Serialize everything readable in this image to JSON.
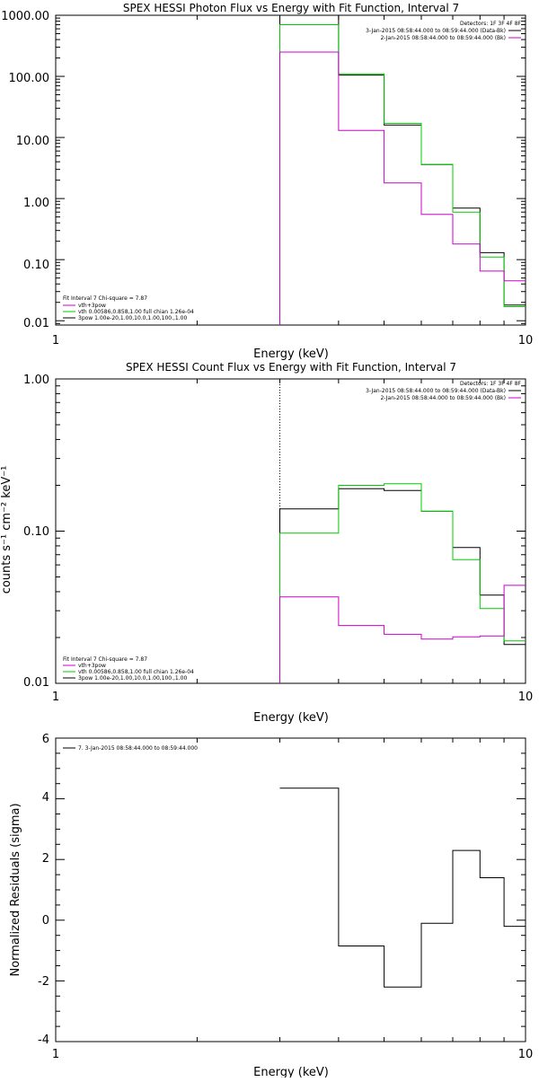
{
  "colors": {
    "black": "#000000",
    "green": "#00cc00",
    "magenta": "#cc00cc"
  },
  "chart_data": [
    {
      "type": "line",
      "step": true,
      "title": "SPEX HESSI Photon Flux vs Energy with Fit Function, Interval 7",
      "xlabel": "Energy (keV)",
      "ylabel": "",
      "xscale": "log",
      "yscale": "log",
      "xlim": [
        1,
        10
      ],
      "ylim": [
        0.0085,
        1000
      ],
      "xtick_labels": [
        "1",
        "10"
      ],
      "ytick_labels": [
        "1000.00",
        "100.00",
        "10.00",
        "1.00",
        "0.10",
        "0.01"
      ],
      "legend_top": {
        "placement": "top-right",
        "lines": [
          {
            "text": "Detectors: 1F 3F 4F 8F",
            "color": ""
          },
          {
            "text": "3-Jan-2015 08:58:44.000 to 08:59:44.000 (Data-Bk)",
            "color": "black"
          },
          {
            "text": "2-Jan-2015 08:58:44.000 to 08:59:44.000 (Bk)",
            "color": "magenta"
          }
        ]
      },
      "legend_bottom": {
        "placement": "bottom-left",
        "lines": [
          {
            "text": "Fit Interval 7   Chi-square = 7.87",
            "color": ""
          },
          {
            "text": "vth+3pow",
            "color": "magenta"
          },
          {
            "text": "vth 0.00586,0.858,1.00  full chian 1.26e-04",
            "color": "green"
          },
          {
            "text": "3pow 1.00e-20,1.00,10.0,1.00,100.,1.00",
            "color": "black"
          }
        ]
      },
      "x_edges": [
        3.0,
        4.0,
        5.0,
        6.0,
        7.0,
        8.0,
        9.0,
        10.0
      ],
      "series": [
        {
          "color": "black",
          "values": [
            1000,
            105,
            16,
            3.6,
            0.7,
            0.13,
            0.018
          ]
        },
        {
          "color": "green",
          "values": [
            700,
            110,
            17,
            3.6,
            0.6,
            0.11,
            0.017
          ]
        },
        {
          "color": "magenta",
          "values": [
            250,
            13,
            1.8,
            0.55,
            0.18,
            0.065,
            0.045
          ]
        }
      ],
      "vline": {
        "x": 3.0,
        "style": "dotted"
      }
    },
    {
      "type": "line",
      "step": true,
      "title": "SPEX HESSI Count Flux vs Energy with Fit Function, Interval 7",
      "xlabel": "Energy (keV)",
      "ylabel": "counts s⁻¹ cm⁻² keV⁻¹",
      "xscale": "log",
      "yscale": "log",
      "xlim": [
        1,
        10
      ],
      "ylim": [
        0.01,
        1.0
      ],
      "xtick_labels": [
        "1",
        "10"
      ],
      "ytick_labels": [
        "1.00",
        "0.10",
        "0.01"
      ],
      "legend_top": {
        "placement": "top-right",
        "lines": [
          {
            "text": "Detectors: 1F 3F 4F 8F",
            "color": ""
          },
          {
            "text": "3-Jan-2015 08:58:44.000 to 08:59:44.000 (Data-Bk)",
            "color": "black"
          },
          {
            "text": "2-Jan-2015 08:58:44.000 to 08:59:44.000 (Bk)",
            "color": "magenta"
          }
        ]
      },
      "legend_bottom": {
        "placement": "bottom-left",
        "lines": [
          {
            "text": "Fit Interval 7   Chi-square = 7.87",
            "color": ""
          },
          {
            "text": "vth+3pow",
            "color": "magenta"
          },
          {
            "text": "vth 0.00586,0.858,1.00  full chian 1.26e-04",
            "color": "green"
          },
          {
            "text": "3pow 1.00e-20,1.00,10.0,1.00,100.,1.00",
            "color": "black"
          }
        ]
      },
      "x_edges": [
        3.0,
        4.0,
        5.0,
        6.0,
        7.0,
        8.0,
        9.0,
        10.0
      ],
      "series": [
        {
          "color": "black",
          "values": [
            0.14,
            0.19,
            0.185,
            0.135,
            0.078,
            0.038,
            0.018
          ]
        },
        {
          "color": "green",
          "values": [
            0.097,
            0.2,
            0.205,
            0.135,
            0.065,
            0.031,
            0.019
          ]
        },
        {
          "color": "magenta",
          "values": [
            0.037,
            0.024,
            0.021,
            0.0195,
            0.0202,
            0.0205,
            0.044
          ]
        }
      ],
      "vline": {
        "x": 3.0,
        "style": "dotted"
      }
    },
    {
      "type": "line",
      "step": true,
      "title": "",
      "xlabel": "Energy (keV)",
      "ylabel": "Normalized Residuals (sigma)",
      "xscale": "log",
      "yscale": "linear",
      "xlim": [
        1,
        10
      ],
      "ylim": [
        -4,
        6
      ],
      "xtick_labels": [
        "1",
        "10"
      ],
      "ytick_labels": [
        "6",
        "4",
        "2",
        "0",
        "-2",
        "-4"
      ],
      "legend_top": {
        "placement": "top-left",
        "lines": [
          {
            "text": "7.  3-Jan-2015 08:58:44.000 to 08:59:44.000",
            "color": "black"
          }
        ]
      },
      "x_edges": [
        3.0,
        4.0,
        5.0,
        6.0,
        7.0,
        8.0,
        9.0,
        10.0
      ],
      "series": [
        {
          "color": "black",
          "values": [
            4.35,
            -0.85,
            -2.2,
            -0.1,
            2.3,
            1.4,
            -0.2
          ]
        }
      ]
    }
  ]
}
